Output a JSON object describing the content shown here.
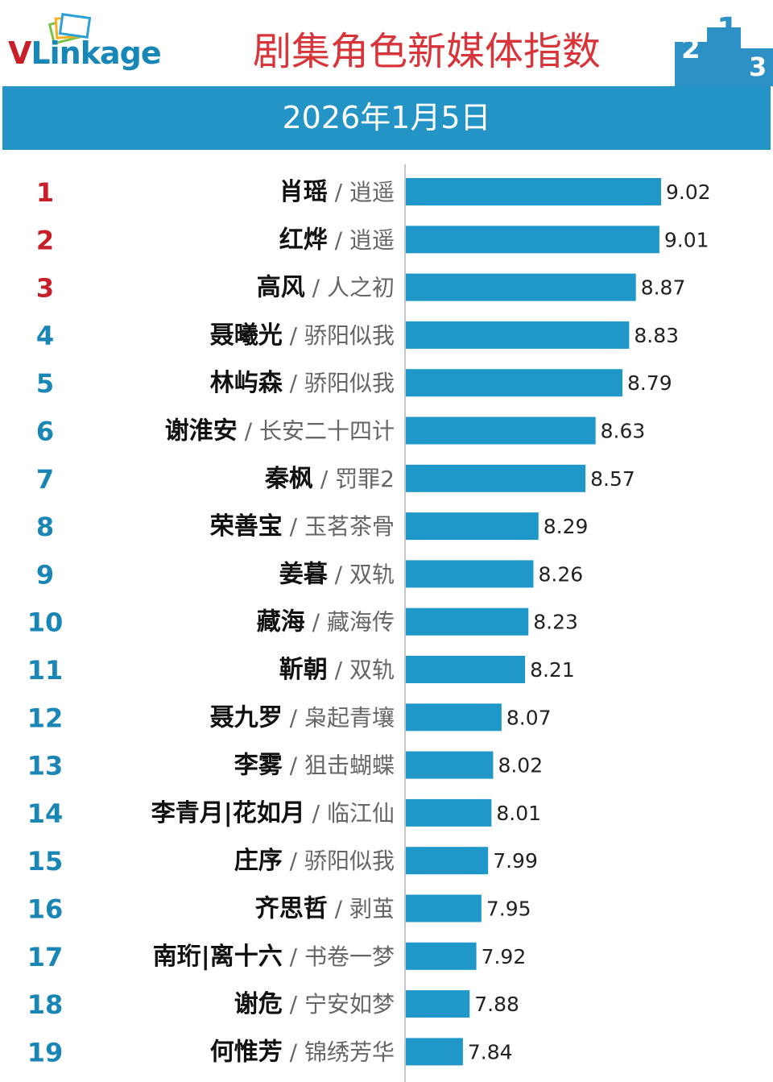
{
  "header": {
    "logo_prefix": "V",
    "logo_suffix": "Linkage",
    "title": "剧集角色新媒体指数",
    "date": "2026年1月5日"
  },
  "colors": {
    "bar": "#1f97c8",
    "rank_top": "#c8202a",
    "rank_other": "#1a86b5",
    "title": "#d7353a",
    "date_bar": "#2493c6",
    "podium": "#2d91c6"
  },
  "podium_icon": "podium-icon",
  "logo_icon": "stacked-cards-icon",
  "chart_data": {
    "type": "bar",
    "orientation": "horizontal",
    "title": "剧集角色新媒体指数",
    "subtitle": "2026年1月5日",
    "xlabel": "",
    "ylabel": "",
    "xlim": [
      7.5,
      9.15
    ],
    "grid": false,
    "rows": [
      {
        "rank": "1",
        "name": "肖瑶",
        "show": "逍遥",
        "value": 9.02,
        "label": "9.02"
      },
      {
        "rank": "2",
        "name": "红烨",
        "show": "逍遥",
        "value": 9.01,
        "label": "9.01"
      },
      {
        "rank": "3",
        "name": "高风",
        "show": "人之初",
        "value": 8.87,
        "label": "8.87"
      },
      {
        "rank": "4",
        "name": "聂曦光",
        "show": "骄阳似我",
        "value": 8.83,
        "label": "8.83"
      },
      {
        "rank": "5",
        "name": "林屿森",
        "show": "骄阳似我",
        "value": 8.79,
        "label": "8.79"
      },
      {
        "rank": "6",
        "name": "谢淮安",
        "show": "长安二十四计",
        "value": 8.63,
        "label": "8.63"
      },
      {
        "rank": "7",
        "name": "秦枫",
        "show": "罚罪2",
        "value": 8.57,
        "label": "8.57"
      },
      {
        "rank": "8",
        "name": "荣善宝",
        "show": "玉茗茶骨",
        "value": 8.29,
        "label": "8.29"
      },
      {
        "rank": "9",
        "name": "姜暮",
        "show": "双轨",
        "value": 8.26,
        "label": "8.26"
      },
      {
        "rank": "10",
        "name": "藏海",
        "show": "藏海传",
        "value": 8.23,
        "label": "8.23"
      },
      {
        "rank": "11",
        "name": "靳朝",
        "show": "双轨",
        "value": 8.21,
        "label": "8.21"
      },
      {
        "rank": "12",
        "name": "聂九罗",
        "show": "枭起青壤",
        "value": 8.07,
        "label": "8.07"
      },
      {
        "rank": "13",
        "name": "李雾",
        "show": "狙击蝴蝶",
        "value": 8.02,
        "label": "8.02"
      },
      {
        "rank": "14",
        "name": "李青月|花如月",
        "show": "临江仙",
        "value": 8.01,
        "label": "8.01"
      },
      {
        "rank": "15",
        "name": "庄序",
        "show": "骄阳似我",
        "value": 7.99,
        "label": "7.99"
      },
      {
        "rank": "16",
        "name": "齐思哲",
        "show": "剥茧",
        "value": 7.95,
        "label": "7.95"
      },
      {
        "rank": "17",
        "name": "南珩|离十六",
        "show": "书卷一梦",
        "value": 7.92,
        "label": "7.92"
      },
      {
        "rank": "18",
        "name": "谢危",
        "show": "宁安如梦",
        "value": 7.88,
        "label": "7.88"
      },
      {
        "rank": "19",
        "name": "何惟芳",
        "show": "锦绣芳华",
        "value": 7.84,
        "label": "7.84"
      }
    ]
  }
}
